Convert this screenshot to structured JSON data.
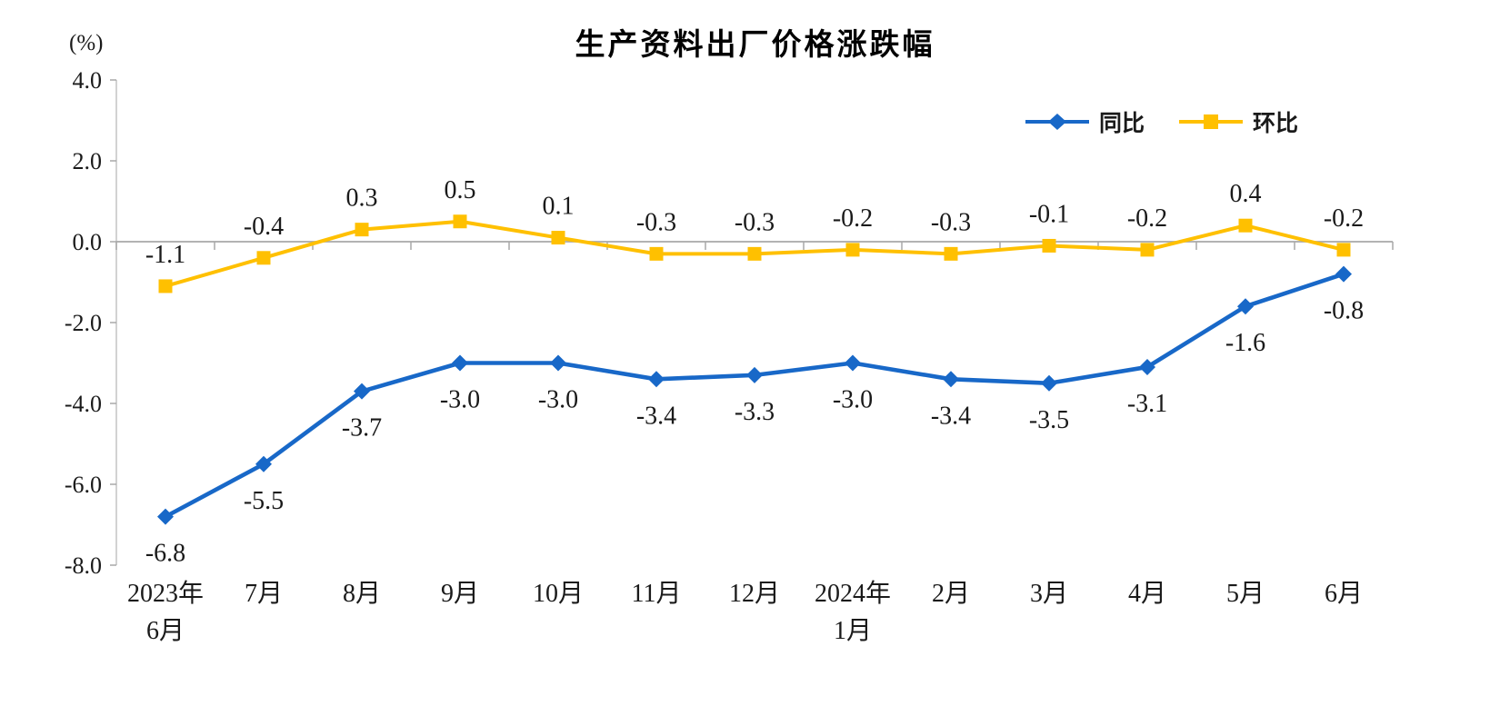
{
  "chart_data": {
    "type": "line",
    "title": "生产资料出厂价格涨跌幅",
    "ylabel": "(%)",
    "xlabel": "",
    "ylim": [
      -8.0,
      4.0
    ],
    "y_ticks": [
      4.0,
      2.0,
      0.0,
      -2.0,
      -4.0,
      -6.0,
      -8.0
    ],
    "grid": false,
    "legend_position": "top-right",
    "categories": [
      "2023年\n6月",
      "7月",
      "8月",
      "9月",
      "10月",
      "11月",
      "12月",
      "2024年\n1月",
      "2月",
      "3月",
      "4月",
      "5月",
      "6月"
    ],
    "series": [
      {
        "name": "同比",
        "color": "#1868c8",
        "marker": "diamond",
        "label_position": "below",
        "values": [
          -6.8,
          -5.5,
          -3.7,
          -3.0,
          -3.0,
          -3.4,
          -3.3,
          -3.0,
          -3.4,
          -3.5,
          -3.1,
          -1.6,
          -0.8
        ]
      },
      {
        "name": "环比",
        "color": "#ffc000",
        "marker": "square",
        "label_position": "above",
        "values": [
          -1.1,
          -0.4,
          0.3,
          0.5,
          0.1,
          -0.3,
          -0.3,
          -0.2,
          -0.3,
          -0.1,
          -0.2,
          0.4,
          -0.2
        ]
      }
    ]
  },
  "colors": {
    "axis": "#c6c6c6",
    "zero_line": "#a8a8a8",
    "tick": "#a8a8a8",
    "text": "#1a1a1a",
    "background": "#ffffff"
  }
}
